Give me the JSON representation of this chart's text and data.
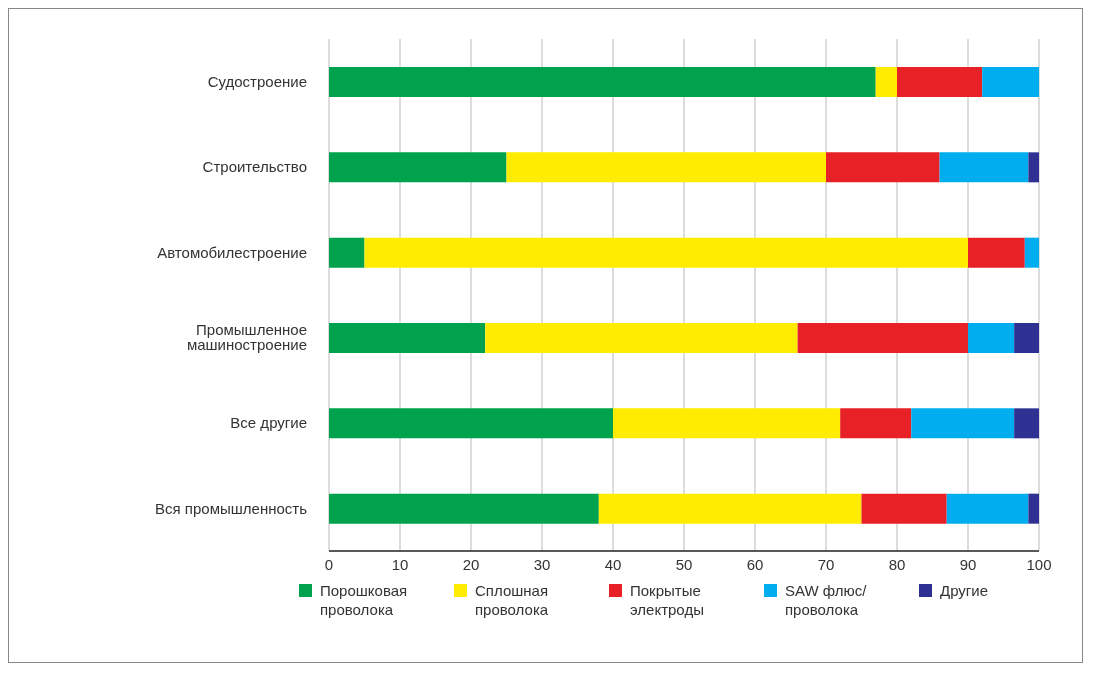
{
  "chart_data": {
    "type": "bar",
    "orientation": "horizontal",
    "stacked": true,
    "categories": [
      "Судостроение",
      "Строительство",
      "Автомобилестроение",
      "Промышленное машиностроение",
      "Все другие",
      "Вся промышленность"
    ],
    "series": [
      {
        "name": "Порошковая проволока",
        "color": "#00a24e",
        "values": [
          77,
          25,
          5,
          22,
          40,
          38
        ]
      },
      {
        "name": "Сплошная проволока",
        "color": "#ffec00",
        "values": [
          3,
          45,
          85,
          44,
          32,
          37
        ]
      },
      {
        "name": "Покрытые электроды",
        "color": "#e82127",
        "values": [
          12,
          16,
          8,
          24,
          10,
          12
        ]
      },
      {
        "name": "SAW флюс/ проволока",
        "color": "#00aeef",
        "values": [
          8,
          12.5,
          2,
          6.5,
          14.5,
          11.5
        ]
      },
      {
        "name": "Другие",
        "color": "#2e3192",
        "values": [
          0,
          1.5,
          0,
          3.5,
          3.5,
          1.5
        ]
      }
    ],
    "xlim": [
      0,
      100
    ],
    "xticks": [
      0,
      10,
      20,
      30,
      40,
      50,
      60,
      70,
      80,
      90,
      100
    ],
    "grid": "x",
    "legend": "bottom"
  }
}
